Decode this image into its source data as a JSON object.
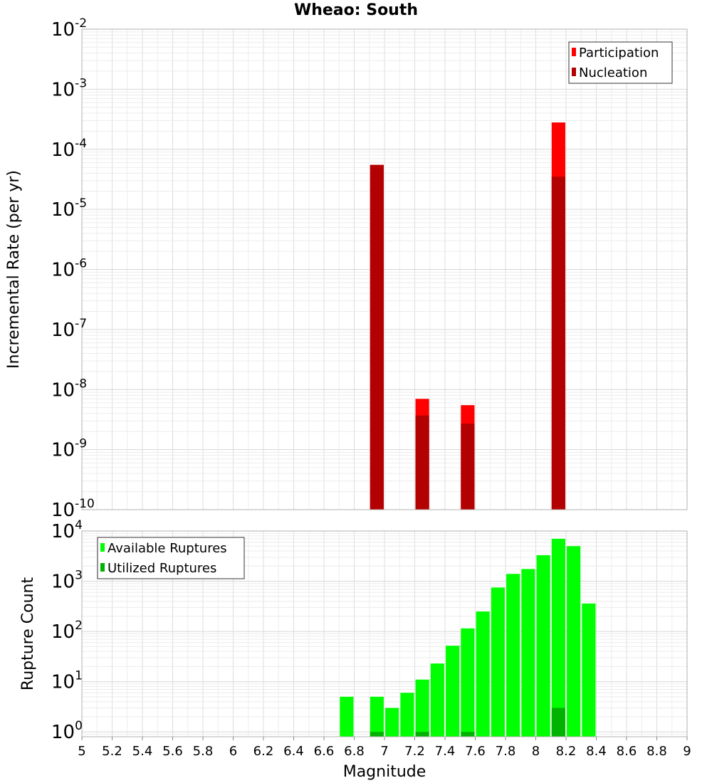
{
  "chart_data": [
    {
      "type": "bar",
      "title": "Wheao: South",
      "xlabel": "",
      "ylabel": "Incremental Rate (per yr)",
      "xlim": [
        5,
        9
      ],
      "ylim": [
        1e-10,
        0.01
      ],
      "yscale": "log",
      "grid": true,
      "legend_position": "top-right",
      "y_ticks": [
        {
          "base": "10",
          "exp": "-10"
        },
        {
          "base": "10",
          "exp": "-9"
        },
        {
          "base": "10",
          "exp": "-8"
        },
        {
          "base": "10",
          "exp": "-7"
        },
        {
          "base": "10",
          "exp": "-6"
        },
        {
          "base": "10",
          "exp": "-5"
        },
        {
          "base": "10",
          "exp": "-4"
        },
        {
          "base": "10",
          "exp": "-3"
        },
        {
          "base": "10",
          "exp": "-2"
        }
      ],
      "x": [
        6.95,
        7.25,
        7.55,
        8.15
      ],
      "series": [
        {
          "name": "Participation",
          "color": "#ff0000",
          "values": [
            5.5e-05,
            7e-09,
            5.5e-09,
            0.00028
          ]
        },
        {
          "name": "Nucleation",
          "color": "#b30000",
          "values": [
            5.5e-05,
            3.7e-09,
            2.7e-09,
            3.5e-05
          ]
        }
      ]
    },
    {
      "type": "bar",
      "title": "",
      "xlabel": "Magnitude",
      "ylabel": "Rupture Count",
      "xlim": [
        5,
        9
      ],
      "ylim": [
        0.8,
        10000
      ],
      "yscale": "log",
      "grid": true,
      "legend_position": "top-left",
      "y_ticks": [
        {
          "base": "10",
          "exp": "0"
        },
        {
          "base": "10",
          "exp": "1"
        },
        {
          "base": "10",
          "exp": "2"
        },
        {
          "base": "10",
          "exp": "3"
        },
        {
          "base": "10",
          "exp": "4"
        }
      ],
      "x_ticks": [
        "5",
        "5.2",
        "5.4",
        "5.6",
        "5.8",
        "6",
        "6.2",
        "6.4",
        "6.6",
        "6.8",
        "7",
        "7.2",
        "7.4",
        "7.6",
        "7.8",
        "8",
        "8.2",
        "8.4",
        "8.6",
        "8.8",
        "9"
      ],
      "x": [
        6.75,
        6.95,
        7.05,
        7.15,
        7.25,
        7.35,
        7.45,
        7.55,
        7.65,
        7.75,
        7.85,
        7.95,
        8.05,
        8.15,
        8.25,
        8.35
      ],
      "series": [
        {
          "name": "Available Ruptures",
          "color": "#00ff00",
          "values": [
            5,
            5,
            3,
            6,
            11,
            23,
            52,
            115,
            250,
            750,
            1400,
            1750,
            3300,
            7000,
            5000,
            360
          ]
        },
        {
          "name": "Utilized Ruptures",
          "color": "#00b300",
          "values": [
            0,
            1,
            0,
            0,
            1,
            0,
            0,
            1,
            0,
            0,
            0,
            0,
            0,
            3,
            0,
            0
          ]
        }
      ]
    }
  ]
}
